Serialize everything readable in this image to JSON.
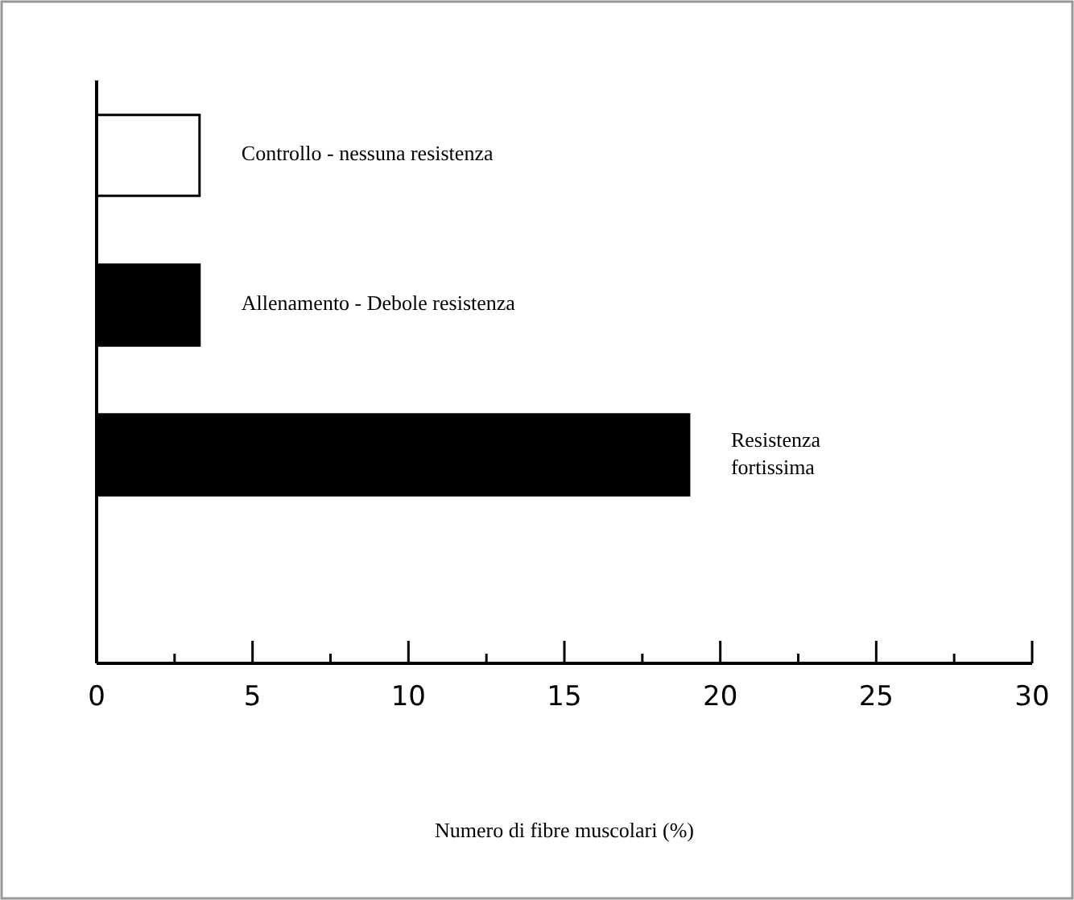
{
  "chart_data": {
    "type": "bar",
    "orientation": "horizontal",
    "xlabel": "Numero di fibre muscolari (%)",
    "categories": [
      "Controllo - nessuna resistenza",
      "Allenamento - Debole resistenza",
      "Resistenza fortissima"
    ],
    "values": [
      3.3,
      3.3,
      19.0
    ],
    "colors": [
      "#ffffff",
      "#000000",
      "#000000"
    ],
    "xlim": [
      0,
      30
    ],
    "xticks": [
      0,
      {
        "value": 2.5,
        "label": null
      },
      5,
      {
        "value": 7.5,
        "label": null
      },
      10,
      {
        "value": 12.5,
        "label": null
      },
      15,
      {
        "value": 17.5,
        "label": null
      },
      20,
      {
        "value": 22.5,
        "label": null
      },
      25,
      {
        "value": 27.5,
        "label": null
      },
      30
    ],
    "grid": false
  }
}
